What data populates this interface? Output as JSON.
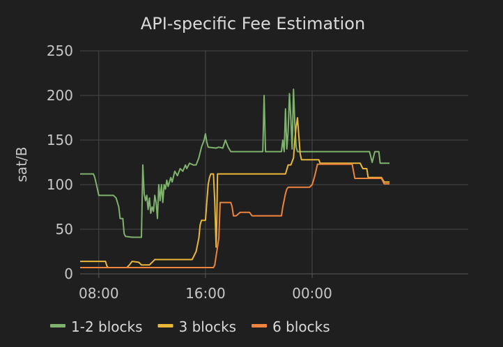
{
  "chart_data": {
    "type": "line",
    "title": "API-specific Fee Estimation",
    "ylabel": "sat/B",
    "xlabel": "",
    "ylim": [
      0,
      250
    ],
    "yticks": [
      0,
      50,
      100,
      150,
      200,
      250
    ],
    "xlim": [
      6.6,
      35.7
    ],
    "xticks": [
      {
        "value": 8,
        "label": "08:00"
      },
      {
        "value": 16,
        "label": "16:00"
      },
      {
        "value": 24,
        "label": "00:00"
      }
    ],
    "grid": true,
    "legend_position": "bottom-left",
    "series": [
      {
        "name": "1-2 blocks",
        "color": "#7eb26d",
        "points": [
          [
            6.6,
            112
          ],
          [
            7.6,
            112
          ],
          [
            7.7,
            108
          ],
          [
            7.9,
            95
          ],
          [
            8.0,
            88
          ],
          [
            9.1,
            88
          ],
          [
            9.3,
            85
          ],
          [
            9.5,
            75
          ],
          [
            9.6,
            62
          ],
          [
            9.8,
            62
          ],
          [
            9.9,
            45
          ],
          [
            10.0,
            42
          ],
          [
            10.5,
            41
          ],
          [
            11.2,
            41
          ],
          [
            11.3,
            122
          ],
          [
            11.4,
            90
          ],
          [
            11.5,
            82
          ],
          [
            11.6,
            88
          ],
          [
            11.7,
            72
          ],
          [
            11.8,
            85
          ],
          [
            11.9,
            68
          ],
          [
            12.0,
            75
          ],
          [
            12.1,
            70
          ],
          [
            12.2,
            88
          ],
          [
            12.3,
            80
          ],
          [
            12.4,
            62
          ],
          [
            12.5,
            100
          ],
          [
            12.6,
            82
          ],
          [
            12.7,
            100
          ],
          [
            12.8,
            80
          ],
          [
            12.9,
            100
          ],
          [
            13.0,
            95
          ],
          [
            13.1,
            105
          ],
          [
            13.2,
            98
          ],
          [
            13.4,
            108
          ],
          [
            13.5,
            103
          ],
          [
            13.7,
            115
          ],
          [
            13.9,
            110
          ],
          [
            14.1,
            118
          ],
          [
            14.3,
            115
          ],
          [
            14.5,
            122
          ],
          [
            14.6,
            118
          ],
          [
            14.8,
            124
          ],
          [
            15.1,
            122
          ],
          [
            15.3,
            122
          ],
          [
            15.5,
            130
          ],
          [
            15.7,
            142
          ],
          [
            15.9,
            150
          ],
          [
            16.0,
            157
          ],
          [
            16.1,
            148
          ],
          [
            16.2,
            142
          ],
          [
            16.8,
            141
          ],
          [
            17.0,
            142
          ],
          [
            17.3,
            141
          ],
          [
            17.5,
            150
          ],
          [
            17.7,
            142
          ],
          [
            17.9,
            137
          ],
          [
            20.3,
            137
          ],
          [
            20.4,
            200
          ],
          [
            20.5,
            137
          ],
          [
            21.7,
            137
          ],
          [
            21.8,
            150
          ],
          [
            21.9,
            137
          ],
          [
            22.0,
            185
          ],
          [
            22.1,
            140
          ],
          [
            22.2,
            160
          ],
          [
            22.3,
            202
          ],
          [
            22.4,
            175
          ],
          [
            22.5,
            140
          ],
          [
            22.6,
            207
          ],
          [
            22.7,
            168
          ],
          [
            22.8,
            142
          ],
          [
            22.9,
            137
          ],
          [
            28.3,
            137
          ],
          [
            28.5,
            125
          ],
          [
            28.7,
            137
          ],
          [
            29.0,
            137
          ],
          [
            29.1,
            124
          ],
          [
            29.3,
            124
          ],
          [
            29.8,
            124
          ]
        ]
      },
      {
        "name": "3 blocks",
        "color": "#eab839",
        "points": [
          [
            6.6,
            14
          ],
          [
            8.5,
            14
          ],
          [
            8.6,
            9
          ],
          [
            8.7,
            7
          ],
          [
            10.1,
            7
          ],
          [
            10.3,
            10
          ],
          [
            10.5,
            14
          ],
          [
            11.0,
            13
          ],
          [
            11.2,
            10
          ],
          [
            11.8,
            10
          ],
          [
            12.0,
            13
          ],
          [
            12.2,
            16
          ],
          [
            15.0,
            16
          ],
          [
            15.3,
            25
          ],
          [
            15.5,
            40
          ],
          [
            15.6,
            55
          ],
          [
            15.7,
            60
          ],
          [
            16.0,
            60
          ],
          [
            16.1,
            80
          ],
          [
            16.2,
            100
          ],
          [
            16.3,
            108
          ],
          [
            16.4,
            112
          ],
          [
            16.6,
            112
          ],
          [
            16.7,
            80
          ],
          [
            16.8,
            30
          ],
          [
            16.85,
            60
          ],
          [
            16.9,
            112
          ],
          [
            17.0,
            112
          ],
          [
            22.0,
            112
          ],
          [
            22.2,
            122
          ],
          [
            22.4,
            122
          ],
          [
            22.6,
            130
          ],
          [
            22.7,
            150
          ],
          [
            22.8,
            165
          ],
          [
            22.9,
            175
          ],
          [
            23.0,
            155
          ],
          [
            23.1,
            135
          ],
          [
            23.2,
            128
          ],
          [
            24.5,
            128
          ],
          [
            24.6,
            124
          ],
          [
            25.5,
            124
          ],
          [
            27.6,
            124
          ],
          [
            27.8,
            118
          ],
          [
            28.1,
            118
          ],
          [
            28.2,
            108
          ],
          [
            29.2,
            108
          ],
          [
            29.4,
            103
          ],
          [
            29.8,
            103
          ]
        ]
      },
      {
        "name": "6 blocks",
        "color": "#ef843c",
        "points": [
          [
            6.6,
            7
          ],
          [
            16.6,
            7
          ],
          [
            16.7,
            10
          ],
          [
            16.8,
            20
          ],
          [
            16.9,
            30
          ],
          [
            17.0,
            40
          ],
          [
            17.1,
            80
          ],
          [
            17.9,
            80
          ],
          [
            18.0,
            75
          ],
          [
            18.1,
            65
          ],
          [
            18.3,
            65
          ],
          [
            18.6,
            69
          ],
          [
            19.3,
            69
          ],
          [
            19.5,
            65
          ],
          [
            21.7,
            65
          ],
          [
            21.8,
            75
          ],
          [
            22.0,
            90
          ],
          [
            22.1,
            95
          ],
          [
            22.2,
            97
          ],
          [
            23.8,
            97
          ],
          [
            24.0,
            100
          ],
          [
            24.2,
            110
          ],
          [
            24.4,
            123
          ],
          [
            27.0,
            123
          ],
          [
            27.2,
            107
          ],
          [
            28.2,
            107
          ],
          [
            29.2,
            107
          ],
          [
            29.4,
            101
          ],
          [
            29.8,
            101
          ]
        ]
      }
    ]
  }
}
